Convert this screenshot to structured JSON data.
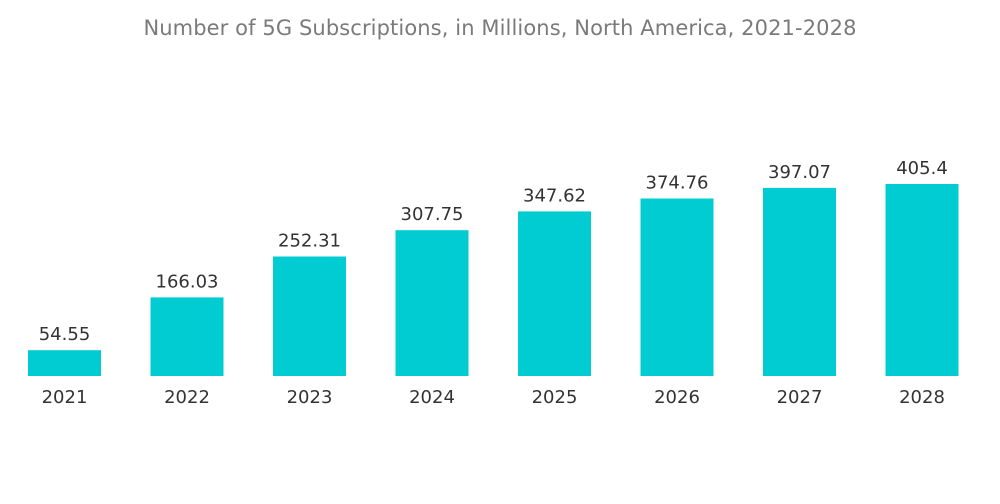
{
  "chart_data": {
    "type": "bar",
    "title": "Number of 5G Subscriptions, in Millions, North America, 2021-2028",
    "xlabel": "",
    "ylabel": "",
    "categories": [
      "2021",
      "2022",
      "2023",
      "2024",
      "2025",
      "2026",
      "2027",
      "2028"
    ],
    "values": [
      54.55,
      166.03,
      252.31,
      307.75,
      347.62,
      374.76,
      397.07,
      405.4
    ],
    "value_labels": [
      "54.55",
      "166.03",
      "252.31",
      "307.75",
      "347.62",
      "374.76",
      "397.07",
      "405.4"
    ],
    "ylim": [
      0,
      405.4
    ],
    "grid": false,
    "legend": "none",
    "bar_color": "#00ccd1"
  }
}
